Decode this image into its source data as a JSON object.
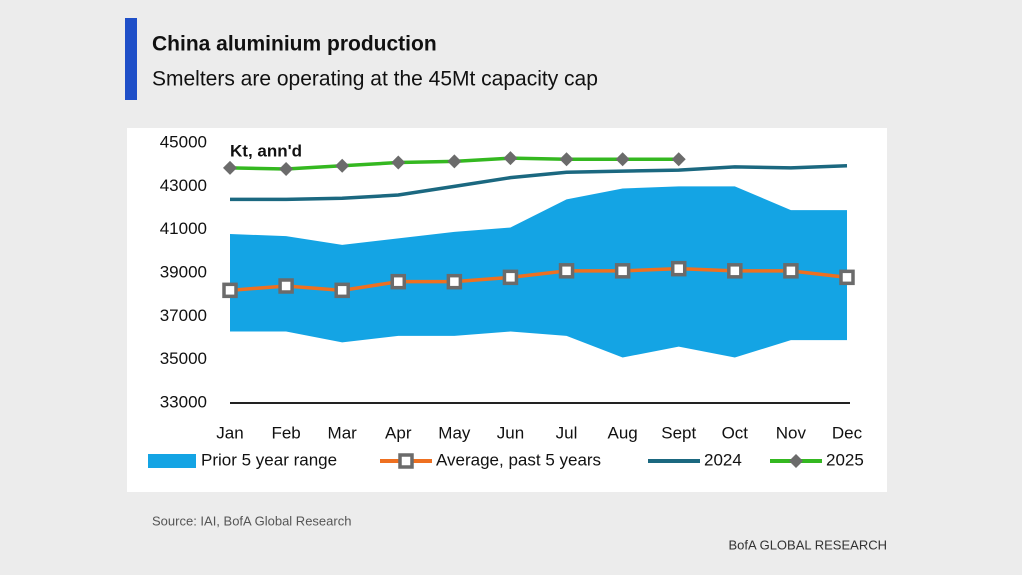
{
  "chart_data": {
    "type": "line",
    "title": "China aluminium production",
    "subtitle": "Smelters are operating at the 45Mt capacity cap",
    "annotation": "Kt, ann'd",
    "source": "Source:  IAI, BofA Global Research",
    "footer": "BofA GLOBAL RESEARCH",
    "categories": [
      "Jan",
      "Feb",
      "Mar",
      "Apr",
      "May",
      "Jun",
      "Jul",
      "Aug",
      "Sept",
      "Oct",
      "Nov",
      "Dec"
    ],
    "ylim": [
      33000,
      45000
    ],
    "yticks": [
      33000,
      35000,
      37000,
      39000,
      41000,
      43000,
      45000
    ],
    "series": [
      {
        "name": "Prior 5 year range",
        "kind": "range",
        "color": "#14a4e4",
        "values": [
          40800,
          40700,
          40300,
          40600,
          40900,
          41100,
          42400,
          42900,
          43000,
          43000,
          41900,
          41900
        ],
        "low": [
          36300,
          36300,
          35800,
          36100,
          36100,
          36300,
          36100,
          35100,
          35600,
          35100,
          35900,
          35900
        ]
      },
      {
        "name": "Average, past 5 years",
        "kind": "line",
        "marker": "square",
        "color": "#ee7020",
        "marker_color": "#6b6b6b",
        "values": [
          38200,
          38400,
          38200,
          38600,
          38600,
          38800,
          39100,
          39100,
          39200,
          39100,
          39100,
          38800
        ]
      },
      {
        "name": "2024",
        "kind": "line",
        "color": "#1b6880",
        "values": [
          42400,
          42400,
          42450,
          42600,
          43000,
          43400,
          43650,
          43700,
          43750,
          43900,
          43850,
          43950
        ]
      },
      {
        "name": "2025",
        "kind": "line",
        "marker": "diamond",
        "color": "#34b820",
        "marker_color": "#6b6b6b",
        "values": [
          43850,
          43800,
          43950,
          44100,
          44150,
          44300,
          44250,
          44250,
          44250,
          null,
          null,
          null
        ]
      }
    ]
  }
}
